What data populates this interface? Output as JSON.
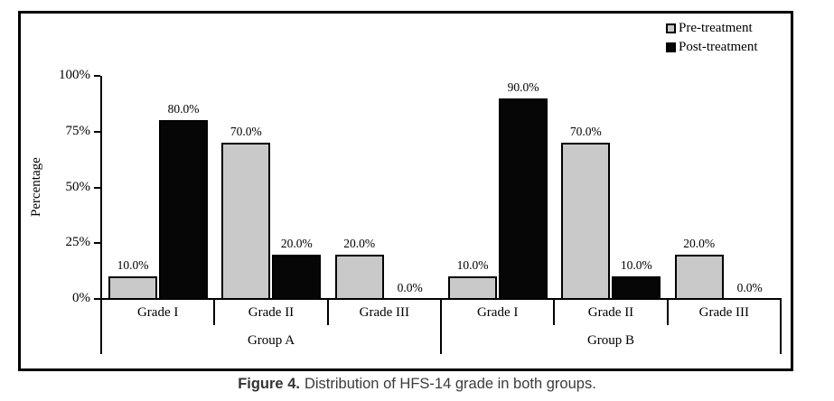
{
  "figure": {
    "caption_label": "Figure 4.",
    "caption_text": "Distribution of HFS-14 grade in both groups."
  },
  "chart_data": {
    "type": "bar",
    "title": "",
    "ylabel": "Percentage",
    "xlabel": "",
    "ylim": [
      0,
      100
    ],
    "ytick_values": [
      0,
      25,
      50,
      75,
      100
    ],
    "yticks": [
      "0%",
      "25%",
      "50%",
      "75%",
      "100%"
    ],
    "categories": [
      "Grade I",
      "Grade II",
      "Grade III",
      "Grade I",
      "Grade II",
      "Grade III"
    ],
    "groups": [
      {
        "label": "Group A",
        "span": [
          0,
          2
        ]
      },
      {
        "label": "Group B",
        "span": [
          3,
          5
        ]
      }
    ],
    "series": [
      {
        "name": "Pre-treatment",
        "color": "#c9c9c9",
        "values": [
          10.0,
          70.0,
          20.0,
          10.0,
          70.0,
          20.0
        ]
      },
      {
        "name": "Post-treatment",
        "color": "#060606",
        "values": [
          80.0,
          20.0,
          0.0,
          90.0,
          10.0,
          0.0
        ]
      }
    ],
    "value_labels": [
      [
        "10.0%",
        "70.0%",
        "20.0%",
        "10.0%",
        "70.0%",
        "20.0%"
      ],
      [
        "80.0%",
        "20.0%",
        "0.0%",
        "90.0%",
        "10.0%",
        "0.0%"
      ]
    ],
    "legend": [
      "Pre-treatment",
      "Post-treatment"
    ],
    "legend_position": "top-right",
    "grid": false,
    "bar_edge_color": "#000000"
  }
}
